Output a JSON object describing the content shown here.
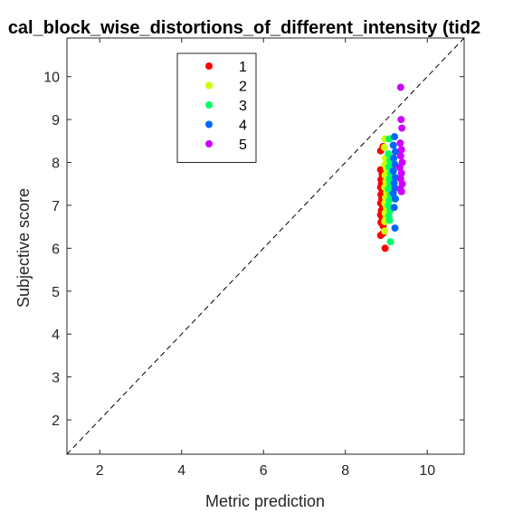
{
  "chart_data": {
    "type": "scatter",
    "title": "cal_block_wise_distortions_of_different_intensity (tid2",
    "xlabel": "Metric prediction",
    "ylabel": "Subjective score",
    "xlim": [
      1.2,
      10.9
    ],
    "ylim": [
      1.2,
      10.9
    ],
    "xticks": [
      2,
      4,
      6,
      8,
      10
    ],
    "yticks": [
      2,
      3,
      4,
      5,
      6,
      7,
      8,
      9,
      10
    ],
    "diagonal_line": "dashed y = x",
    "legend_position": "top-left inside",
    "series": [
      {
        "name": "1",
        "color": "#ff0000",
        "points": [
          [
            8.86,
            8.27
          ],
          [
            8.92,
            8.37
          ],
          [
            8.86,
            7.83
          ],
          [
            8.9,
            7.72
          ],
          [
            8.87,
            7.6
          ],
          [
            8.88,
            7.5
          ],
          [
            8.86,
            7.42
          ],
          [
            8.9,
            7.35
          ],
          [
            8.87,
            7.25
          ],
          [
            8.89,
            7.15
          ],
          [
            8.86,
            7.05
          ],
          [
            8.91,
            6.98
          ],
          [
            8.88,
            6.88
          ],
          [
            8.86,
            6.78
          ],
          [
            8.9,
            6.68
          ],
          [
            8.87,
            6.6
          ],
          [
            8.92,
            6.52
          ],
          [
            8.86,
            6.3
          ],
          [
            8.92,
            6.35
          ],
          [
            8.97,
            6.0
          ]
        ]
      },
      {
        "name": "2",
        "color": "#ccff00",
        "points": [
          [
            8.97,
            8.55
          ],
          [
            8.95,
            8.35
          ],
          [
            8.98,
            8.1
          ],
          [
            8.96,
            7.95
          ],
          [
            9.0,
            7.85
          ],
          [
            8.97,
            7.7
          ],
          [
            8.99,
            7.55
          ],
          [
            8.96,
            7.42
          ],
          [
            9.01,
            7.3
          ],
          [
            8.98,
            7.18
          ],
          [
            8.96,
            7.05
          ],
          [
            9.0,
            6.95
          ],
          [
            8.97,
            6.82
          ],
          [
            8.99,
            6.7
          ],
          [
            8.96,
            6.62
          ],
          [
            8.96,
            6.4
          ]
        ]
      },
      {
        "name": "3",
        "color": "#00ff66",
        "points": [
          [
            9.07,
            8.55
          ],
          [
            9.05,
            8.2
          ],
          [
            9.09,
            8.05
          ],
          [
            9.06,
            7.9
          ],
          [
            9.1,
            7.75
          ],
          [
            9.07,
            7.62
          ],
          [
            9.09,
            7.5
          ],
          [
            9.05,
            7.38
          ],
          [
            9.1,
            7.25
          ],
          [
            9.07,
            7.12
          ],
          [
            9.05,
            7.0
          ],
          [
            9.09,
            6.88
          ],
          [
            9.06,
            6.75
          ],
          [
            9.08,
            6.65
          ],
          [
            9.1,
            6.15
          ]
        ]
      },
      {
        "name": "4",
        "color": "#0066ff",
        "points": [
          [
            9.2,
            8.6
          ],
          [
            9.17,
            8.4
          ],
          [
            9.22,
            8.25
          ],
          [
            9.18,
            8.1
          ],
          [
            9.21,
            7.95
          ],
          [
            9.17,
            7.8
          ],
          [
            9.22,
            7.65
          ],
          [
            9.19,
            7.52
          ],
          [
            9.21,
            7.4
          ],
          [
            9.17,
            7.28
          ],
          [
            9.22,
            7.15
          ],
          [
            9.19,
            6.95
          ],
          [
            9.21,
            6.47
          ]
        ]
      },
      {
        "name": "5",
        "color": "#cc00ff",
        "points": [
          [
            9.35,
            9.75
          ],
          [
            9.36,
            9.0
          ],
          [
            9.38,
            8.8
          ],
          [
            9.34,
            8.45
          ],
          [
            9.37,
            8.3
          ],
          [
            9.35,
            8.15
          ],
          [
            9.39,
            8.0
          ],
          [
            9.33,
            7.88
          ],
          [
            9.37,
            7.75
          ],
          [
            9.35,
            7.62
          ],
          [
            9.39,
            7.5
          ],
          [
            9.34,
            7.38
          ],
          [
            9.37,
            7.32
          ]
        ]
      }
    ]
  }
}
